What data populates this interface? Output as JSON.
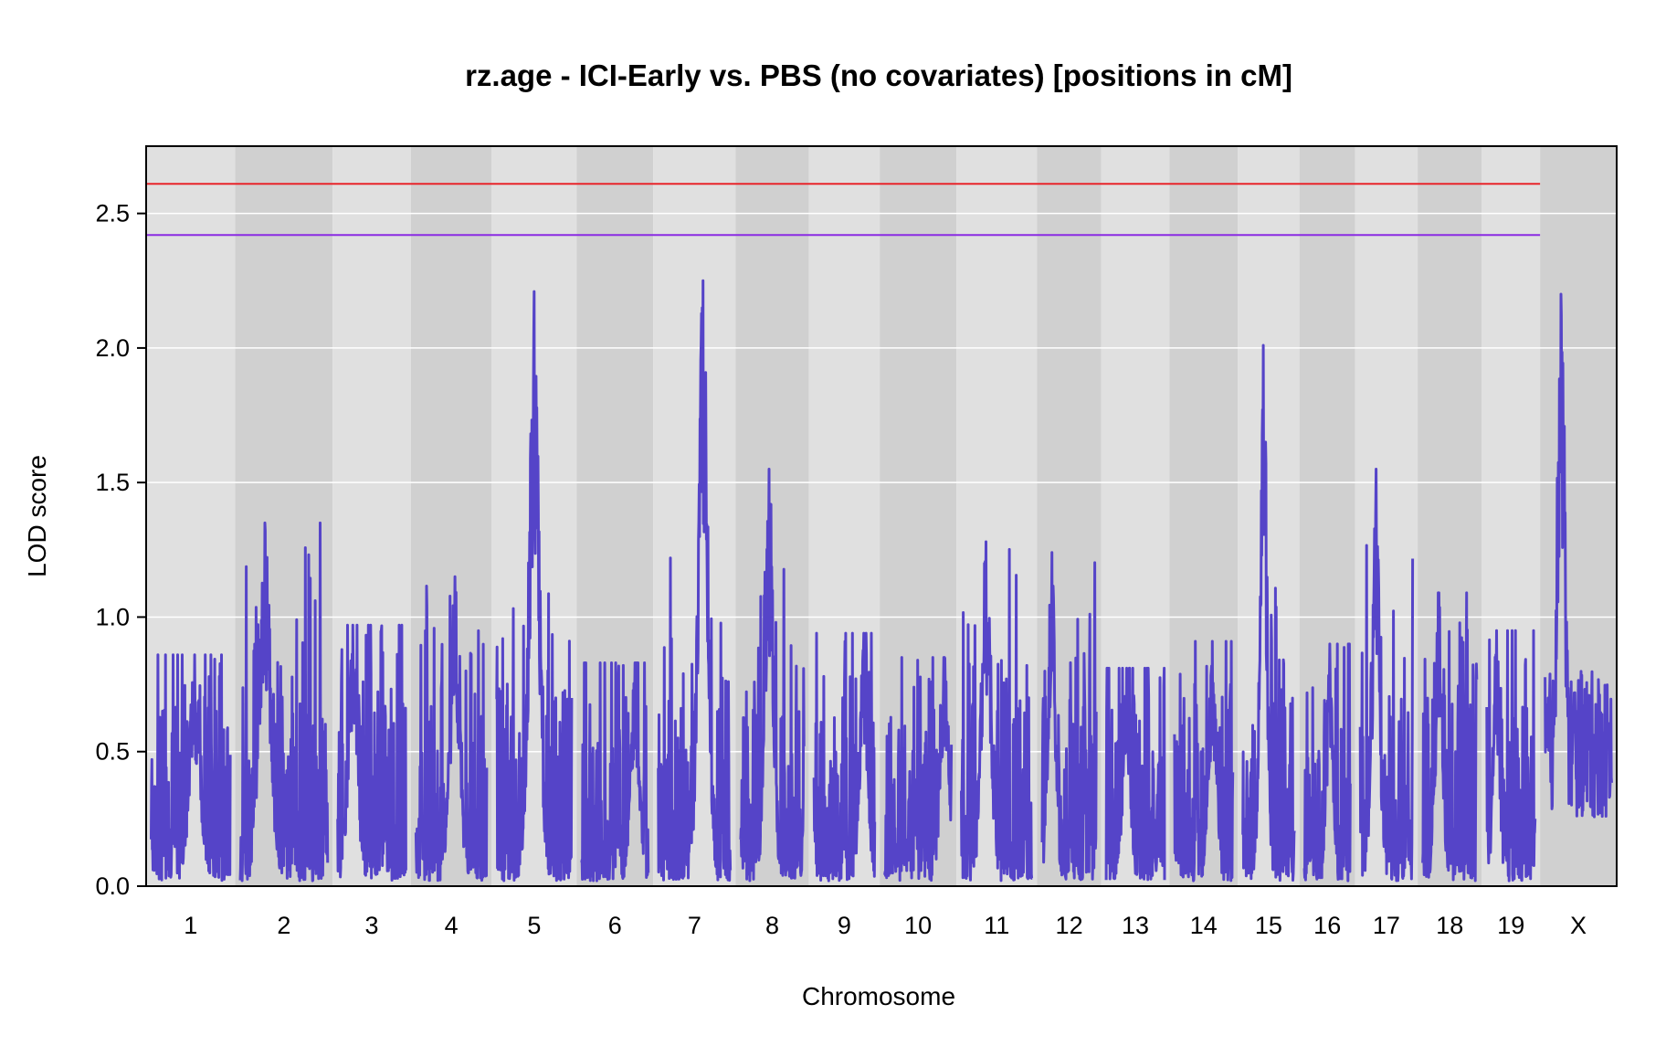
{
  "chart_data": {
    "type": "line",
    "title": "rz.age - ICI-Early vs. PBS (no covariates) [positions in cM]",
    "xlabel": "Chromosome",
    "ylabel": "LOD score",
    "ylim": [
      0,
      2.75
    ],
    "yticks": [
      "0.0",
      "0.5",
      "1.0",
      "1.5",
      "2.0",
      "2.5"
    ],
    "grid": "horizontal",
    "colors": {
      "band_light": "#e0e0e0",
      "band_dark": "#d0d0d0",
      "grid": "#ffffff",
      "lod_curve": "#5544c8",
      "threshold_high": "#e8242a",
      "threshold_low": "#8a2be2"
    },
    "thresholds": [
      {
        "value": 2.61,
        "color": "#e8242a"
      },
      {
        "value": 2.42,
        "color": "#8a2be2"
      }
    ],
    "chromosomes": [
      {
        "label": "1",
        "length_cM": 95,
        "peak": 0.86,
        "peak_pos": 0.55
      },
      {
        "label": "2",
        "length_cM": 105,
        "peak": 1.35,
        "peak_pos": 0.28
      },
      {
        "label": "3",
        "length_cM": 82,
        "peak": 0.97,
        "peak_pos": 0.22
      },
      {
        "label": "4",
        "length_cM": 85,
        "peak": 1.15,
        "peak_pos": 0.55
      },
      {
        "label": "5",
        "length_cM": 90,
        "peak": 2.21,
        "peak_pos": 0.5
      },
      {
        "label": "6",
        "length_cM": 80,
        "peak": 0.83,
        "peak_pos": 0.8
      },
      {
        "label": "7",
        "length_cM": 87,
        "peak": 2.25,
        "peak_pos": 0.62
      },
      {
        "label": "8",
        "length_cM": 76,
        "peak": 1.55,
        "peak_pos": 0.45
      },
      {
        "label": "9",
        "length_cM": 73,
        "peak": 0.94,
        "peak_pos": 0.82
      },
      {
        "label": "10",
        "length_cM": 80,
        "peak": 0.85,
        "peak_pos": 0.9
      },
      {
        "label": "11",
        "length_cM": 85,
        "peak": 1.28,
        "peak_pos": 0.35
      },
      {
        "label": "12",
        "length_cM": 65,
        "peak": 1.24,
        "peak_pos": 0.18
      },
      {
        "label": "13",
        "length_cM": 70,
        "peak": 0.81,
        "peak_pos": 0.35
      },
      {
        "label": "14",
        "length_cM": 70,
        "peak": 0.91,
        "peak_pos": 0.65
      },
      {
        "label": "15",
        "length_cM": 62,
        "peak": 2.01,
        "peak_pos": 0.4
      },
      {
        "label": "16",
        "length_cM": 55,
        "peak": 0.9,
        "peak_pos": 0.55
      },
      {
        "label": "17",
        "length_cM": 63,
        "peak": 1.55,
        "peak_pos": 0.3
      },
      {
        "label": "18",
        "length_cM": 65,
        "peak": 1.09,
        "peak_pos": 0.3
      },
      {
        "label": "19",
        "length_cM": 58,
        "peak": 0.95,
        "peak_pos": 0.2
      },
      {
        "label": "X",
        "length_cM": 80,
        "peak": 2.2,
        "peak_pos": 0.24
      }
    ],
    "notable_peaks": [
      {
        "chr": "5",
        "lod": 2.21
      },
      {
        "chr": "7",
        "lod": 2.25
      },
      {
        "chr": "15",
        "lod": 2.01
      },
      {
        "chr": "X",
        "lod": 2.2
      },
      {
        "chr": "X",
        "lod": 2.14
      },
      {
        "chr": "X",
        "lod": 2.02
      },
      {
        "chr": "8",
        "lod": 1.55
      },
      {
        "chr": "17",
        "lod": 1.55
      },
      {
        "chr": "2",
        "lod": 1.35
      }
    ]
  }
}
